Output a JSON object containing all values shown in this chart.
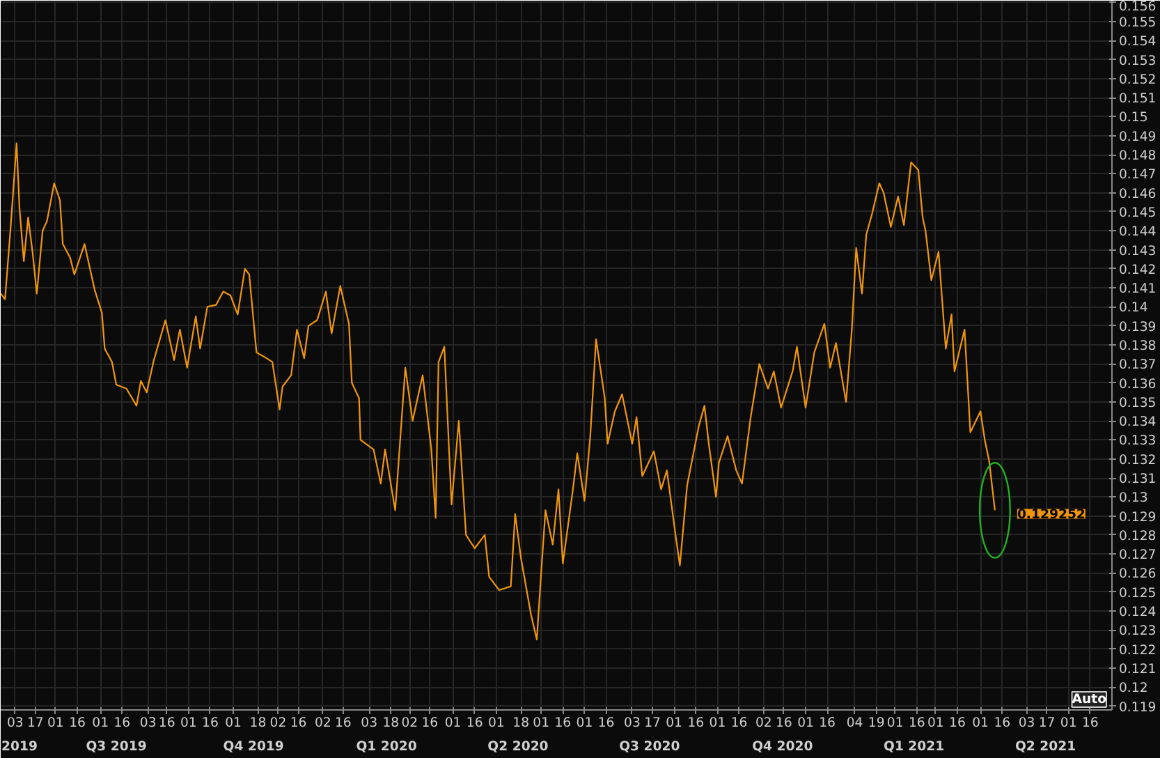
{
  "chart_data": {
    "type": "line",
    "x": [
      "2019-05-24",
      "2019-05-27",
      "2019-05-31",
      "2019-06-04",
      "2019-06-06",
      "2019-06-09",
      "2019-06-12",
      "2019-06-15",
      "2019-06-18",
      "2019-06-22",
      "2019-06-25",
      "2019-06-30",
      "2019-07-04",
      "2019-07-06",
      "2019-07-11",
      "2019-07-14",
      "2019-07-21",
      "2019-07-28",
      "2019-08-02",
      "2019-08-04",
      "2019-08-09",
      "2019-08-12",
      "2019-08-19",
      "2019-08-26",
      "2019-08-29",
      "2019-09-02",
      "2019-09-07",
      "2019-09-15",
      "2019-09-21",
      "2019-09-25",
      "2019-09-30",
      "2019-10-06",
      "2019-10-09",
      "2019-10-14",
      "2019-10-20",
      "2019-10-25",
      "2019-10-30",
      "2019-11-04",
      "2019-11-09",
      "2019-11-12",
      "2019-11-17",
      "2019-11-24",
      "2019-11-28",
      "2019-12-03",
      "2019-12-05",
      "2019-12-11",
      "2019-12-15",
      "2019-12-20",
      "2019-12-23",
      "2019-12-29",
      "2020-01-04",
      "2020-01-08",
      "2020-01-14",
      "2020-01-20",
      "2020-01-22",
      "2020-01-27",
      "2020-01-28",
      "2020-02-06",
      "2020-02-11",
      "2020-02-14",
      "2020-02-21",
      "2020-02-28",
      "2020-03-04",
      "2020-03-11",
      "2020-03-17",
      "2020-03-20",
      "2020-03-22",
      "2020-03-26",
      "2020-03-31",
      "2020-04-05",
      "2020-04-10",
      "2020-04-16",
      "2020-04-23",
      "2020-04-26",
      "2020-05-03",
      "2020-05-11",
      "2020-05-14",
      "2020-05-18",
      "2020-05-25",
      "2020-05-29",
      "2020-06-01",
      "2020-06-04",
      "2020-06-09",
      "2020-06-13",
      "2020-06-16",
      "2020-06-23",
      "2020-06-26",
      "2020-07-01",
      "2020-07-05",
      "2020-07-09",
      "2020-07-15",
      "2020-07-17",
      "2020-07-22",
      "2020-07-27",
      "2020-08-03",
      "2020-08-06",
      "2020-08-10",
      "2020-08-18",
      "2020-08-23",
      "2020-08-27",
      "2020-09-02",
      "2020-09-05",
      "2020-09-10",
      "2020-09-18",
      "2020-09-22",
      "2020-09-25",
      "2020-09-30",
      "2020-10-02",
      "2020-10-08",
      "2020-10-14",
      "2020-10-18",
      "2020-10-24",
      "2020-10-30",
      "2020-11-05",
      "2020-11-09",
      "2020-11-14",
      "2020-11-22",
      "2020-11-25",
      "2020-12-01",
      "2020-12-07",
      "2020-12-14",
      "2020-12-18",
      "2020-12-22",
      "2020-12-29",
      "2021-01-02",
      "2021-01-05",
      "2021-01-09",
      "2021-01-12",
      "2021-01-16",
      "2021-01-21",
      "2021-01-24",
      "2021-01-29",
      "2021-02-03",
      "2021-02-07",
      "2021-02-12",
      "2021-02-17",
      "2021-02-20",
      "2021-02-22",
      "2021-02-26",
      "2021-03-03",
      "2021-03-08",
      "2021-03-12",
      "2021-03-14",
      "2021-03-21",
      "2021-03-25",
      "2021-04-01",
      "2021-04-04",
      "2021-04-07",
      "2021-04-11"
    ],
    "series": [
      {
        "color": "#f0960a",
        "values": [
          0.1407,
          0.1404,
          0.1443,
          0.1486,
          0.1452,
          0.1424,
          0.1447,
          0.1429,
          0.1407,
          0.144,
          0.1445,
          0.1465,
          0.1456,
          0.1433,
          0.1426,
          0.1417,
          0.1433,
          0.1409,
          0.1397,
          0.1378,
          0.1371,
          0.1359,
          0.1357,
          0.1348,
          0.1361,
          0.1355,
          0.1372,
          0.1393,
          0.1372,
          0.1388,
          0.1368,
          0.1395,
          0.1378,
          0.14,
          0.1401,
          0.1408,
          0.1406,
          0.1396,
          0.142,
          0.1417,
          0.1376,
          0.1373,
          0.1371,
          0.1346,
          0.1358,
          0.1364,
          0.1388,
          0.1373,
          0.139,
          0.1393,
          0.1408,
          0.1386,
          0.1411,
          0.1391,
          0.136,
          0.1352,
          0.133,
          0.1325,
          0.1307,
          0.1325,
          0.1293,
          0.1368,
          0.134,
          0.1364,
          0.1325,
          0.1289,
          0.1371,
          0.1379,
          0.1296,
          0.134,
          0.128,
          0.1273,
          0.128,
          0.1258,
          0.1251,
          0.1253,
          0.1291,
          0.1268,
          0.1238,
          0.1225,
          0.126,
          0.1293,
          0.1275,
          0.1304,
          0.1265,
          0.1304,
          0.1323,
          0.1298,
          0.1332,
          0.1383,
          0.1352,
          0.1328,
          0.1345,
          0.1354,
          0.1328,
          0.1342,
          0.1311,
          0.1324,
          0.1304,
          0.1314,
          0.128,
          0.1264,
          0.1306,
          0.1337,
          0.1348,
          0.1328,
          0.13,
          0.1318,
          0.1332,
          0.1314,
          0.1307,
          0.1342,
          0.137,
          0.1357,
          0.1366,
          0.1347,
          0.1366,
          0.1379,
          0.1347,
          0.1376,
          0.1391,
          0.1368,
          0.1381,
          0.135,
          0.1388,
          0.1431,
          0.1407,
          0.1438,
          0.1449,
          0.1465,
          0.146,
          0.1442,
          0.1458,
          0.1443,
          0.1476,
          0.1472,
          0.1447,
          0.144,
          0.1414,
          0.1429,
          0.1378,
          0.1396,
          0.1366,
          0.1388,
          0.1334,
          0.1345,
          0.133,
          0.1319,
          0.1293
        ]
      }
    ],
    "xlim": [
      "2019-05-24",
      "2021-07-01"
    ],
    "xticks": [
      {
        "value": "2019-06-03",
        "label": "03"
      },
      {
        "value": "2019-06-17",
        "label": "17"
      },
      {
        "value": "2019-07-01",
        "label": "01"
      },
      {
        "value": "2019-07-16",
        "label": "16"
      },
      {
        "value": "2019-08-01",
        "label": "01"
      },
      {
        "value": "2019-08-16",
        "label": "16"
      },
      {
        "value": "2019-09-03",
        "label": "03"
      },
      {
        "value": "2019-09-16",
        "label": "16"
      },
      {
        "value": "2019-10-01",
        "label": "01"
      },
      {
        "value": "2019-10-16",
        "label": "16"
      },
      {
        "value": "2019-11-01",
        "label": "01"
      },
      {
        "value": "2019-11-18",
        "label": "18"
      },
      {
        "value": "2019-12-02",
        "label": "02"
      },
      {
        "value": "2019-12-16",
        "label": "16"
      },
      {
        "value": "2020-01-02",
        "label": "02"
      },
      {
        "value": "2020-01-16",
        "label": "16"
      },
      {
        "value": "2020-02-03",
        "label": "03"
      },
      {
        "value": "2020-02-18",
        "label": "18"
      },
      {
        "value": "2020-03-02",
        "label": "02"
      },
      {
        "value": "2020-03-16",
        "label": "16"
      },
      {
        "value": "2020-04-01",
        "label": "01"
      },
      {
        "value": "2020-04-16",
        "label": "16"
      },
      {
        "value": "2020-05-01",
        "label": "01"
      },
      {
        "value": "2020-05-18",
        "label": "18"
      },
      {
        "value": "2020-06-01",
        "label": "01"
      },
      {
        "value": "2020-06-16",
        "label": "16"
      },
      {
        "value": "2020-07-01",
        "label": "01"
      },
      {
        "value": "2020-07-16",
        "label": "16"
      },
      {
        "value": "2020-08-03",
        "label": "03"
      },
      {
        "value": "2020-08-17",
        "label": "17"
      },
      {
        "value": "2020-09-01",
        "label": "01"
      },
      {
        "value": "2020-09-16",
        "label": "16"
      },
      {
        "value": "2020-10-01",
        "label": "01"
      },
      {
        "value": "2020-10-16",
        "label": "16"
      },
      {
        "value": "2020-11-02",
        "label": "02"
      },
      {
        "value": "2020-11-16",
        "label": "16"
      },
      {
        "value": "2020-12-01",
        "label": "01"
      },
      {
        "value": "2020-12-16",
        "label": "16"
      },
      {
        "value": "2021-01-04",
        "label": "04"
      },
      {
        "value": "2021-01-19",
        "label": "19"
      },
      {
        "value": "2021-02-01",
        "label": "01"
      },
      {
        "value": "2021-02-16",
        "label": "16"
      },
      {
        "value": "2021-03-01",
        "label": "01"
      },
      {
        "value": "2021-03-16",
        "label": "16"
      },
      {
        "value": "2021-04-01",
        "label": "01"
      },
      {
        "value": "2021-04-16",
        "label": "16"
      },
      {
        "value": "2021-05-03",
        "label": "03"
      },
      {
        "value": "2021-05-17",
        "label": "17"
      },
      {
        "value": "2021-06-01",
        "label": "01"
      },
      {
        "value": "2021-06-16",
        "label": "16"
      }
    ],
    "x2lim": [
      "2019-05-24",
      "2021-07-01"
    ],
    "x2ticks": [
      {
        "value": "2019-06-06",
        "label": "2019"
      },
      {
        "value": "2019-08-12",
        "label": "Q3 2019"
      },
      {
        "value": "2019-11-15",
        "label": "Q4 2019"
      },
      {
        "value": "2020-02-15",
        "label": "Q1 2020"
      },
      {
        "value": "2020-05-16",
        "label": "Q2 2020"
      },
      {
        "value": "2020-08-15",
        "label": "Q3 2020"
      },
      {
        "value": "2020-11-15",
        "label": "Q4 2020"
      },
      {
        "value": "2021-02-14",
        "label": "Q1 2021"
      },
      {
        "value": "2021-05-16",
        "label": "Q2 2021"
      }
    ],
    "ylim": [
      0.1188,
      0.1561
    ],
    "yticks": [
      0.119,
      0.12,
      0.121,
      0.122,
      0.123,
      0.124,
      0.125,
      0.126,
      0.127,
      0.128,
      0.129,
      0.13,
      0.131,
      0.132,
      0.133,
      0.134,
      0.135,
      0.136,
      0.137,
      0.138,
      0.139,
      0.14,
      0.141,
      0.142,
      0.143,
      0.144,
      0.145,
      0.146,
      0.147,
      0.148,
      0.149,
      0.15,
      0.151,
      0.152,
      0.153,
      0.154,
      0.155,
      0.156
    ],
    "grid": true,
    "annotations": [
      {
        "text": "0.129252",
        "x": "2021-04-11",
        "y": 0.1293
      },
      "Auto"
    ]
  }
}
